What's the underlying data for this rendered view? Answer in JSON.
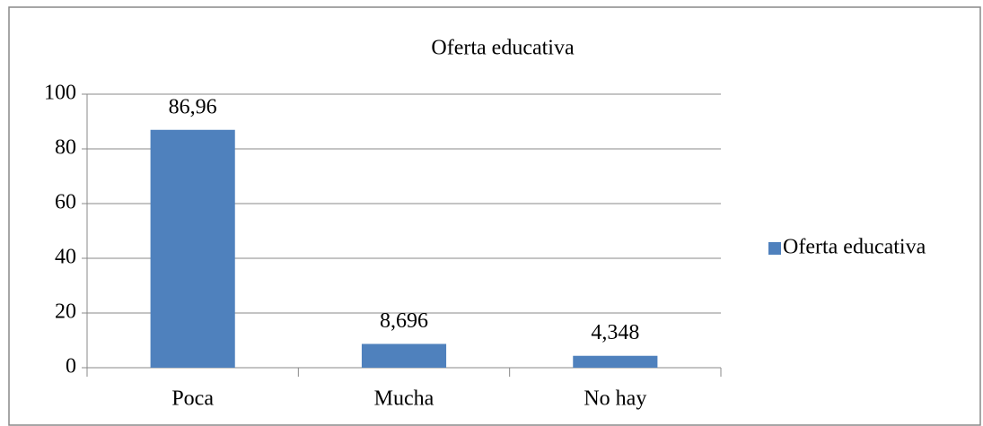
{
  "chart_data": {
    "type": "bar",
    "title": "Oferta educativa",
    "categories": [
      "Poca",
      "Mucha",
      "No hay"
    ],
    "series": [
      {
        "name": "Oferta educativa",
        "color": "#4f81bd",
        "values": [
          86.96,
          8.696,
          4.348
        ],
        "value_labels": [
          "86,96",
          "8,696",
          "4,348"
        ]
      }
    ],
    "ylim": [
      0,
      100
    ],
    "yticks": [
      0,
      20,
      40,
      60,
      80,
      100
    ],
    "grid": true,
    "legend": "right"
  }
}
